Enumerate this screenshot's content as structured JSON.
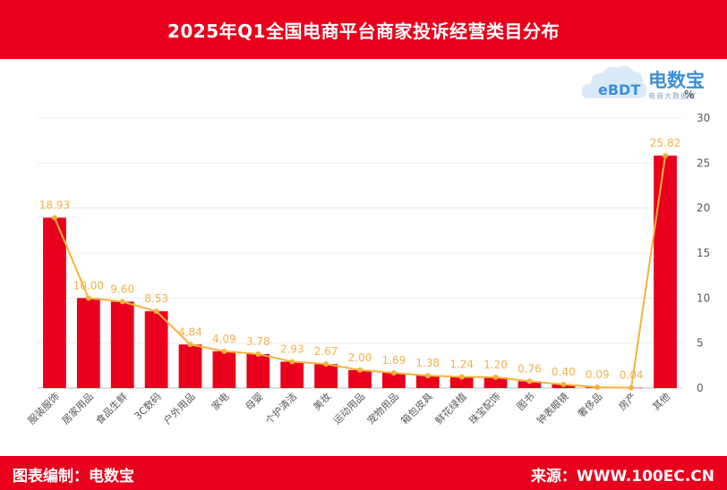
{
  "header": {
    "title": "2025年Q1全国电商平台商家投诉经营类目分布"
  },
  "footer": {
    "left": "图表编制：电数宝",
    "right": "来源：WWW.100EC.CN"
  },
  "logo": {
    "name": "电数宝",
    "sub": "电商大数据库",
    "mark": "eBDT",
    "icon": "cloud-icon"
  },
  "colors": {
    "bar": "#e8001c",
    "line": "#f7b23b",
    "label": "#f5b04a",
    "axis": "#595959",
    "brand": "#e8001c"
  },
  "chart_data": {
    "type": "bar",
    "categories": [
      "服装服饰",
      "居家用品",
      "食品生鲜",
      "3C数码",
      "户外用品",
      "家电",
      "母婴",
      "个护清洁",
      "美妆",
      "运动用品",
      "宠物用品",
      "箱包皮具",
      "鲜花绿植",
      "珠宝配饰",
      "图书",
      "钟表眼镜",
      "奢侈品",
      "房产",
      "其他"
    ],
    "series": [
      {
        "type": "bar",
        "values": [
          18.93,
          10.0,
          9.6,
          8.53,
          4.84,
          4.09,
          3.78,
          2.93,
          2.67,
          2.0,
          1.69,
          1.38,
          1.24,
          1.2,
          0.76,
          0.4,
          0.09,
          0.04,
          25.82
        ]
      },
      {
        "type": "line",
        "values": [
          18.93,
          10.0,
          9.6,
          8.53,
          4.84,
          4.09,
          3.78,
          2.93,
          2.67,
          2.0,
          1.69,
          1.38,
          1.24,
          1.2,
          0.76,
          0.4,
          0.09,
          0.04,
          25.82
        ]
      }
    ],
    "data_labels": [
      "18.93",
      "10.00",
      "9.60",
      "8.53",
      "4.84",
      "4.09",
      "3.78",
      "2.93",
      "2.67",
      "2.00",
      "1.69",
      "1.38",
      "1.24",
      "1.20",
      "0.76",
      "0.40",
      "0.09",
      "0.04",
      "25.82"
    ],
    "ylabel": "%",
    "ylim": [
      0,
      30
    ],
    "yticks": [
      "0",
      "5",
      "10",
      "15",
      "20",
      "25",
      "30"
    ],
    "y_axis_position": "right",
    "grid": true
  }
}
